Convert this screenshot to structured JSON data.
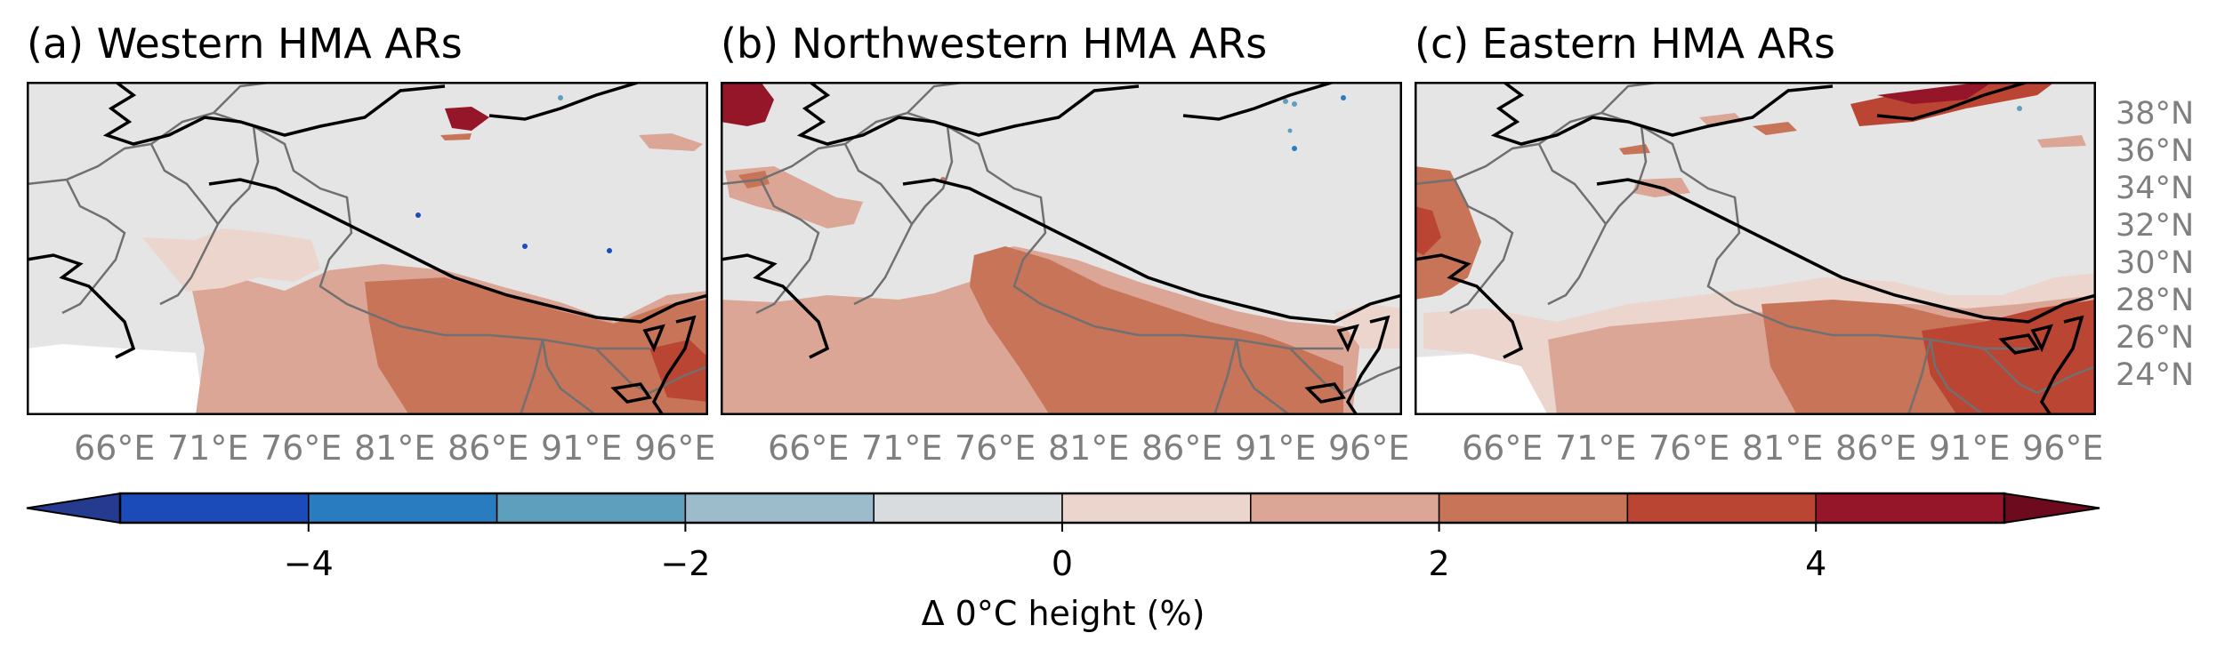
{
  "panels": [
    {
      "id": "a",
      "title": "(a) Western HMA ARs"
    },
    {
      "id": "b",
      "title": "(b) Northwestern HMA ARs"
    },
    {
      "id": "c",
      "title": "(c) Eastern HMA ARs"
    }
  ],
  "lon_ticks": [
    "66°E",
    "71°E",
    "76°E",
    "81°E",
    "86°E",
    "91°E",
    "96°E"
  ],
  "lat_ticks": [
    "38°N",
    "36°N",
    "34°N",
    "32°N",
    "30°N",
    "28°N",
    "26°N",
    "24°N"
  ],
  "colorbar": {
    "label": "Δ 0°C height (%)",
    "ticks": [
      {
        "value": -4,
        "label": "−4"
      },
      {
        "value": -2,
        "label": "−2"
      },
      {
        "value": 0,
        "label": "0"
      },
      {
        "value": 2,
        "label": "2"
      },
      {
        "value": 4,
        "label": "4"
      }
    ],
    "range": [
      -5,
      5
    ],
    "bins": [
      {
        "from": -5,
        "to": -4,
        "color": "#1a4bb8"
      },
      {
        "from": -4,
        "to": -3,
        "color": "#2a7cc0"
      },
      {
        "from": -3,
        "to": -2,
        "color": "#5f9fbe"
      },
      {
        "from": -2,
        "to": -1,
        "color": "#9cbccb"
      },
      {
        "from": -1,
        "to": 0,
        "color": "#d9dcde"
      },
      {
        "from": 0,
        "to": 1,
        "color": "#ebd5cd"
      },
      {
        "from": 1,
        "to": 2,
        "color": "#dba695"
      },
      {
        "from": 2,
        "to": 3,
        "color": "#c87459"
      },
      {
        "from": 3,
        "to": 4,
        "color": "#b94532"
      },
      {
        "from": 4,
        "to": 5,
        "color": "#941628"
      }
    ],
    "extend_low_color": "#253b8f",
    "extend_high_color": "#6d0a1d"
  },
  "colors": {
    "land_background": "#e5e5e5",
    "coastline": "#000000",
    "borders": "#707070",
    "tick_label": "#7f7f7f"
  }
}
